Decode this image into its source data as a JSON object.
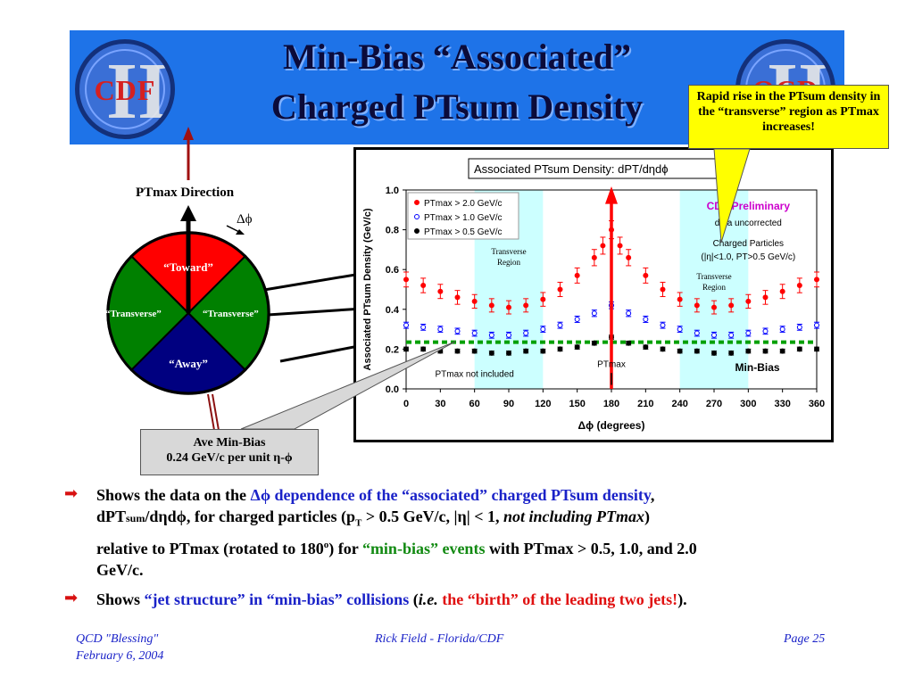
{
  "slide": {
    "title_line1": "Min-Bias “Associated”",
    "title_line2": "Charged PTsum Density",
    "logo_left": "CDF",
    "logo_right": "QCD",
    "callout_rapid": "Rapid rise in the PTsum density in the “transverse” region as PTmax increases!",
    "callout_avemb_line1": "Ave Min-Bias",
    "callout_avemb_line2": "0.24 GeV/c per unit η-ϕ"
  },
  "diagram": {
    "ptmax_direction": "PTmax Direction",
    "delta_phi": "Δϕ",
    "toward": "“Toward”",
    "transverse_left": "“Transverse”",
    "transverse_right": "“Transverse”",
    "away": "“Away”",
    "colors": {
      "toward": "#ff0000",
      "transverse": "#008000",
      "away": "#000080"
    }
  },
  "chart_data": {
    "type": "scatter",
    "title": "Associated PTsum Density: dPT/dηdϕ",
    "ylabel": "Associated PTsum Density (GeV/c)",
    "xlabel": "Δϕ  (degrees)",
    "xlim": [
      0,
      360
    ],
    "ylim": [
      0,
      1.0
    ],
    "x_ticks": [
      "0",
      "30",
      "60",
      "90",
      "120",
      "150",
      "180",
      "210",
      "240",
      "270",
      "300",
      "330",
      "360"
    ],
    "y_ticks": [
      "0.0",
      "0.2",
      "0.4",
      "0.6",
      "0.8",
      "1.0"
    ],
    "legend": [
      "PTmax > 2.0 GeV/c",
      "PTmax > 1.0 GeV/c",
      "PTmax > 0.5 GeV/c"
    ],
    "annotations": {
      "cdf_prelim": "CDF Preliminary",
      "data_uncorr": "data uncorrected",
      "charged_particles": "Charged Particles",
      "cuts": "(|η|<1.0, PT>0.5 GeV/c)",
      "transverse_region": "Transverse Region",
      "ptmax_not_included": "PTmax not included",
      "ptmax": "PTmax",
      "min_bias": "Min-Bias"
    },
    "shaded_regions": [
      [
        60,
        120
      ],
      [
        240,
        300
      ]
    ],
    "min_bias_level": 0.235,
    "series": [
      {
        "name": "PTmax > 2.0 GeV/c",
        "color": "#ff0000",
        "x": [
          0,
          15,
          30,
          45,
          60,
          75,
          90,
          105,
          120,
          135,
          150,
          165,
          172.5,
          180,
          187.5,
          195,
          210,
          225,
          240,
          255,
          270,
          285,
          300,
          315,
          330,
          345,
          360
        ],
        "y": [
          0.55,
          0.52,
          0.49,
          0.46,
          0.44,
          0.42,
          0.41,
          0.42,
          0.45,
          0.5,
          0.57,
          0.66,
          0.72,
          0.8,
          0.72,
          0.66,
          0.57,
          0.5,
          0.45,
          0.42,
          0.41,
          0.42,
          0.44,
          0.46,
          0.49,
          0.52,
          0.55
        ]
      },
      {
        "name": "PTmax > 1.0 GeV/c",
        "color": "#0000ff",
        "x": [
          0,
          15,
          30,
          45,
          60,
          75,
          90,
          105,
          120,
          135,
          150,
          165,
          180,
          195,
          210,
          225,
          240,
          255,
          270,
          285,
          300,
          315,
          330,
          345,
          360
        ],
        "y": [
          0.32,
          0.31,
          0.3,
          0.29,
          0.28,
          0.27,
          0.27,
          0.28,
          0.3,
          0.32,
          0.35,
          0.38,
          0.42,
          0.38,
          0.35,
          0.32,
          0.3,
          0.28,
          0.27,
          0.27,
          0.28,
          0.29,
          0.3,
          0.31,
          0.32
        ]
      },
      {
        "name": "PTmax > 0.5 GeV/c",
        "color": "#000000",
        "x": [
          0,
          15,
          30,
          45,
          60,
          75,
          90,
          105,
          120,
          135,
          150,
          165,
          180,
          195,
          210,
          225,
          240,
          255,
          270,
          285,
          300,
          315,
          330,
          345,
          360
        ],
        "y": [
          0.2,
          0.2,
          0.19,
          0.19,
          0.19,
          0.18,
          0.18,
          0.19,
          0.19,
          0.2,
          0.21,
          0.23,
          0.26,
          0.23,
          0.21,
          0.2,
          0.19,
          0.19,
          0.18,
          0.18,
          0.19,
          0.19,
          0.19,
          0.2,
          0.2
        ]
      }
    ]
  },
  "bullets": {
    "b1_a": "Shows the data on the ",
    "b1_b": "Δϕ dependence of the “associated” charged PTsum density",
    "b1_c": ",",
    "b1_d": "dPT",
    "b1_e": "sum",
    "b1_f": "/dηdϕ, for charged particles (p",
    "b1_g": "T",
    "b1_h": " > 0.5 GeV/c, |η| < 1, ",
    "b1_i": "not including PTmax",
    "b1_j": ")",
    "b1_k": "relative to PTmax (rotated to 180",
    "b1_l": "o",
    "b1_m": ") for ",
    "b1_n": "“min-bias” events",
    "b1_o": " with PTmax > 0.5, 1.0, and 2.0",
    "b1_p": "GeV/c.",
    "b2_a": "Shows ",
    "b2_b": "“jet structure” in “min-bias” collisions",
    "b2_c": " (",
    "b2_d": "i.e.",
    "b2_e": " the “birth” of the leading two jets!",
    "b2_f": ")."
  },
  "footer": {
    "left1": "QCD \"Blessing\"",
    "left2": "February 6, 2004",
    "center": "Rick Field - Florida/CDF",
    "right": "Page 25"
  }
}
